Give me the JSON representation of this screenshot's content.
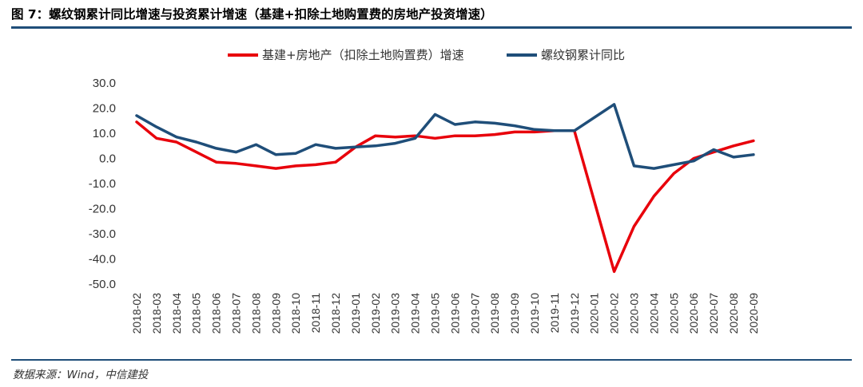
{
  "header": {
    "title": "图 7：螺纹钢累计同比增速与投资累计增速（基建+扣除土地购置费的房地产投资增速）"
  },
  "footer": {
    "source": "数据来源：Wind，中信建投"
  },
  "colors": {
    "rule": "#1f4e79",
    "series_red": "#e8000b",
    "series_blue": "#1f4e79"
  },
  "chart_data": {
    "type": "line",
    "title": "",
    "xlabel": "",
    "ylabel": "",
    "ylim": [
      -50,
      30
    ],
    "yticks": [
      "30.0",
      "20.0",
      "10.0",
      "0.0",
      "-10.0",
      "-20.0",
      "-30.0",
      "-40.0",
      "-50.0"
    ],
    "legend_position": "top-center",
    "grid": false,
    "categories": [
      "2018-02",
      "2018-03",
      "2018-04",
      "2018-05",
      "2018-06",
      "2018-07",
      "2018-08",
      "2018-09",
      "2018-10",
      "2018-11",
      "2018-12",
      "2019-01",
      "2019-02",
      "2019-03",
      "2019-04",
      "2019-05",
      "2019-06",
      "2019-07",
      "2019-08",
      "2019-09",
      "2019-10",
      "2019-11",
      "2019-12",
      "2020-01",
      "2020-02",
      "2020-03",
      "2020-04",
      "2020-05",
      "2020-06",
      "2020-07",
      "2020-08",
      "2020-09"
    ],
    "series": [
      {
        "name": "基建+房地产（扣除土地购置费）增速",
        "color": "#e8000b",
        "values": [
          14.5,
          8.0,
          6.5,
          2.5,
          -1.5,
          -2.0,
          -3.0,
          -4.0,
          -3.0,
          -2.5,
          -1.5,
          4.5,
          9.0,
          8.5,
          9.0,
          8.0,
          9.0,
          9.0,
          9.5,
          10.5,
          10.5,
          11.0,
          11.0,
          null,
          -45.0,
          -27.0,
          -15.0,
          -6.0,
          0.0,
          2.5,
          5.0,
          7.0
        ]
      },
      {
        "name": "螺纹钢累计同比",
        "color": "#1f4e79",
        "values": [
          17.0,
          12.5,
          8.5,
          6.5,
          4.0,
          2.5,
          5.5,
          1.5,
          2.0,
          5.5,
          4.0,
          4.5,
          5.0,
          6.0,
          8.0,
          17.5,
          13.5,
          14.5,
          14.0,
          13.0,
          11.5,
          11.0,
          11.0,
          null,
          21.5,
          -3.0,
          -4.0,
          -2.5,
          -1.0,
          3.5,
          0.5,
          1.5
        ]
      }
    ]
  }
}
